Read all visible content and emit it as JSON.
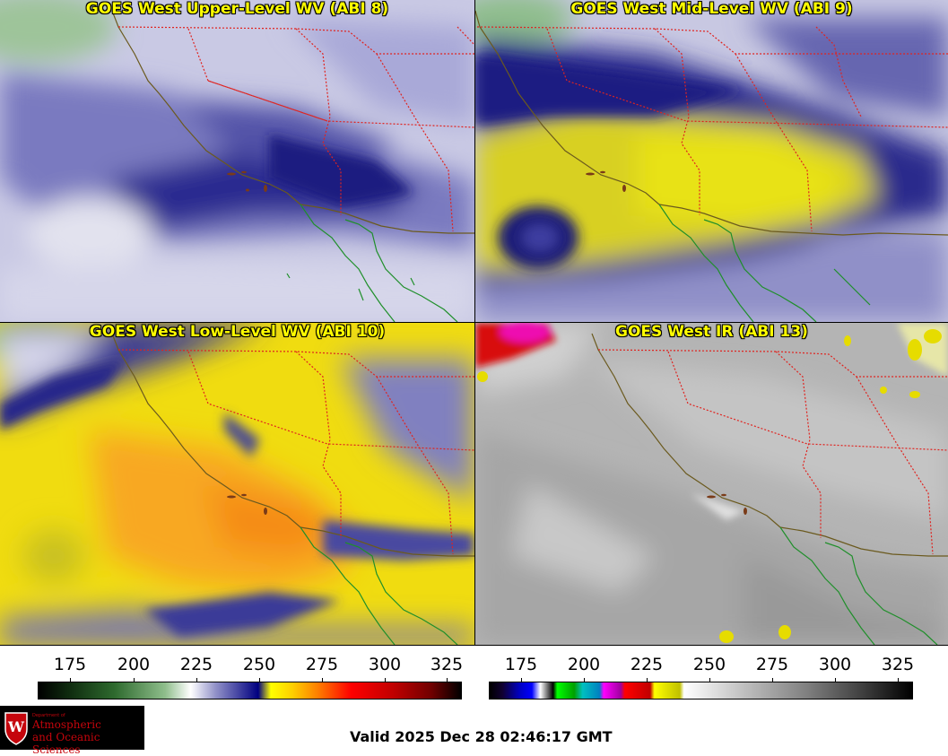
{
  "panels": [
    {
      "id": "upper",
      "title": "GOES West Upper-Level WV (ABI 8)"
    },
    {
      "id": "mid",
      "title": "GOES West Mid-Level WV (ABI 9)"
    },
    {
      "id": "low",
      "title": "GOES West Low-Level WV (ABI 10)"
    },
    {
      "id": "ir",
      "title": "GOES West IR (ABI 13)"
    }
  ],
  "colorbars": {
    "wv": {
      "ticks": [
        "175",
        "200",
        "225",
        "250",
        "275",
        "300",
        "325"
      ]
    },
    "ir": {
      "ticks": [
        "175",
        "200",
        "225",
        "250",
        "275",
        "300",
        "325"
      ]
    }
  },
  "logo": {
    "dept_line": "Department of",
    "name_line1": "Atmospheric",
    "name_line2": "and Oceanic Sciences",
    "crest_letter": "W"
  },
  "valid_time": "Valid 2025 Dec 28 02:46:17 GMT",
  "colors": {
    "border_state": "#e0231f",
    "coastline": "#6b5a1e",
    "border_mexico": "#1f8f2a",
    "title_text": "#ffff00"
  }
}
